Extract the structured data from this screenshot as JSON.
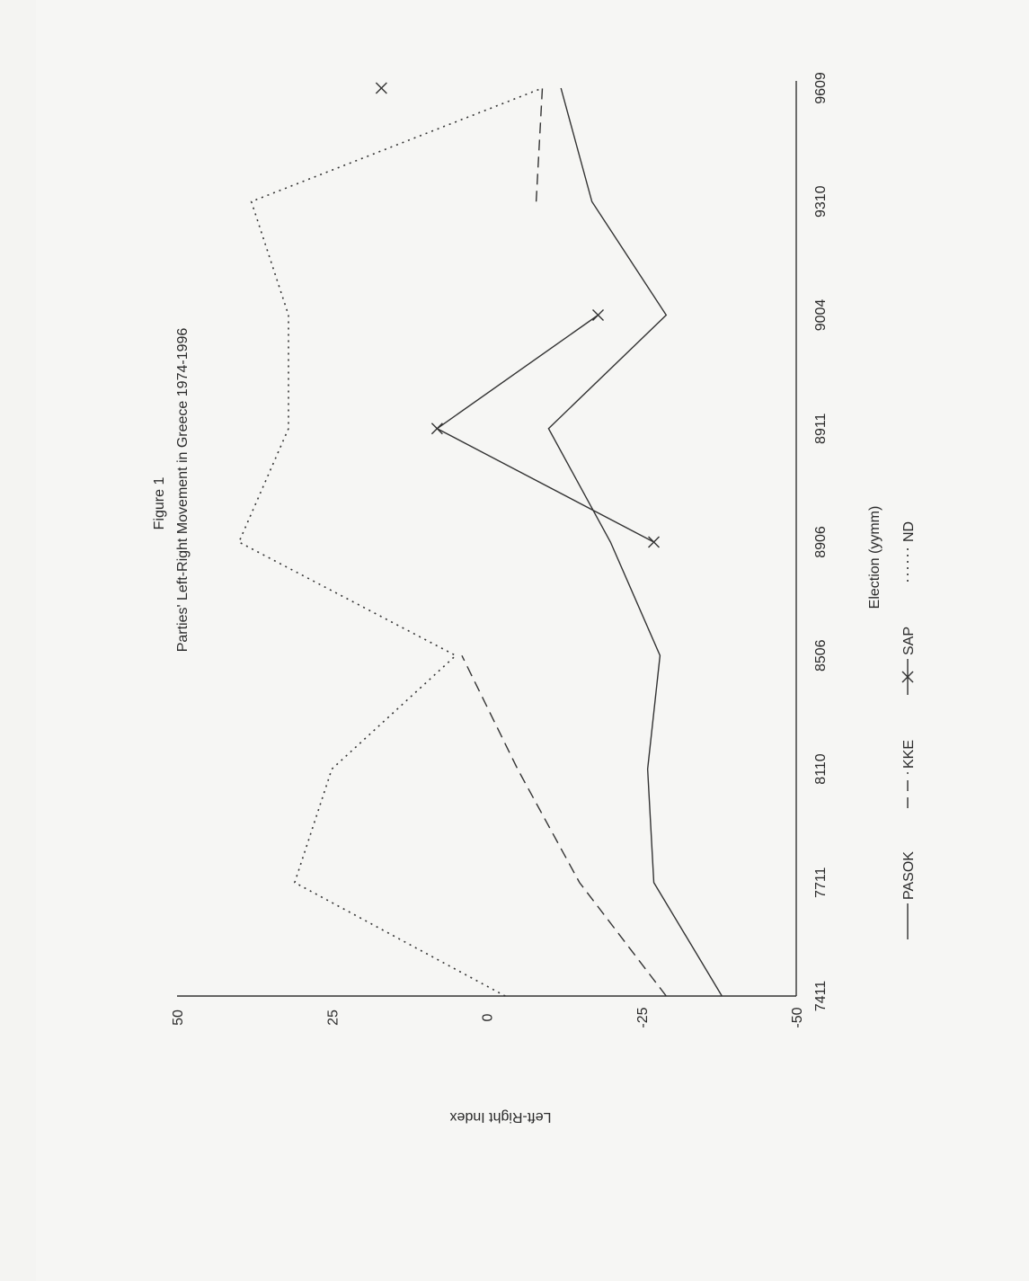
{
  "chart_data": {
    "type": "line",
    "orientation": "rotated-90",
    "title": "Figure 1",
    "subtitle": "Parties' Left-Right Movement in Greece 1974-1996",
    "xlabel": "Election (yymm)",
    "ylabel": "Left-Right Index",
    "categories": [
      "7411",
      "7711",
      "8110",
      "8506",
      "8906",
      "8911",
      "9004",
      "9310",
      "9609"
    ],
    "ylim": [
      -50,
      50
    ],
    "yticks": [
      "-50",
      "-25",
      "0",
      "25",
      "50"
    ],
    "legend_position": "bottom",
    "series": [
      {
        "name": "PASOK",
        "style": "solid",
        "values": [
          -38,
          -27,
          -26,
          -28,
          -20,
          -10,
          -29,
          -17,
          -12
        ]
      },
      {
        "name": "KKE",
        "style": "dashed",
        "values": [
          -29,
          -15,
          -5,
          4,
          null,
          null,
          null,
          -8,
          -9
        ]
      },
      {
        "name": "SAP",
        "style": "solid-x",
        "values": [
          null,
          null,
          null,
          null,
          -27,
          8,
          -18,
          null,
          17
        ]
      },
      {
        "name": "ND",
        "style": "dotted",
        "values": [
          -3,
          31,
          25,
          5,
          40,
          32,
          32,
          38,
          -9
        ]
      }
    ]
  }
}
